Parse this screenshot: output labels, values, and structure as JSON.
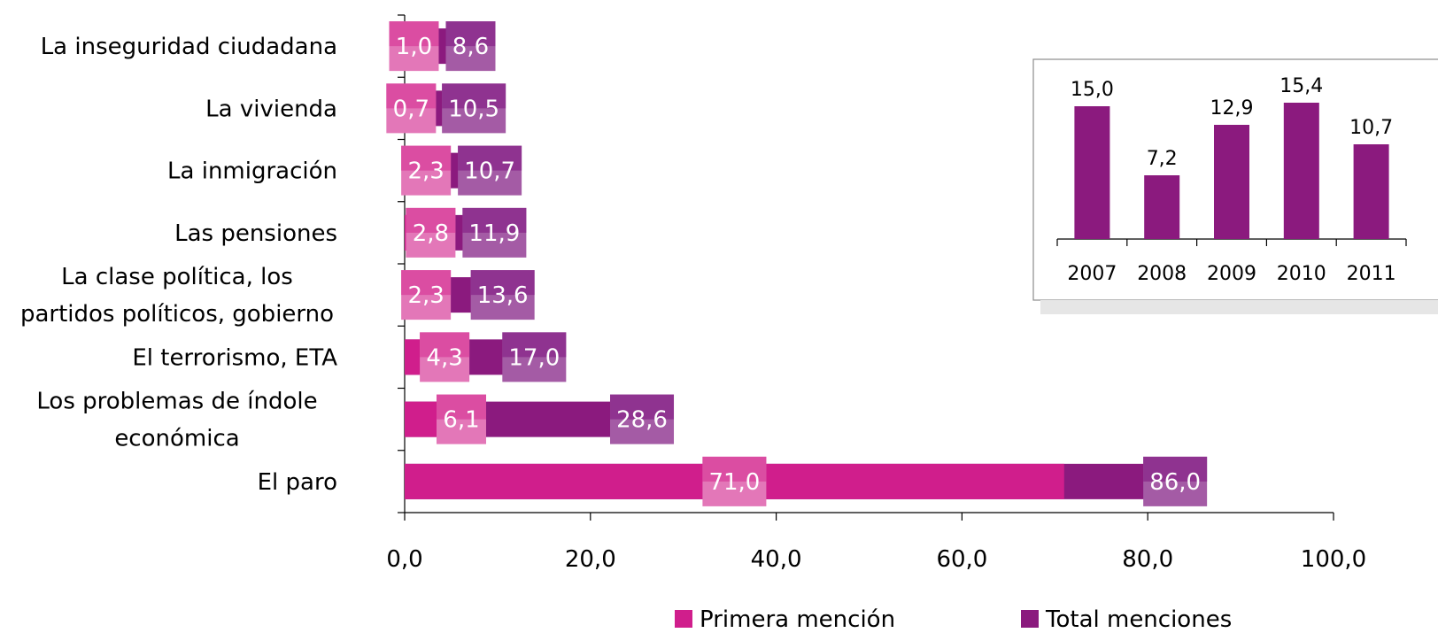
{
  "chart_data": [
    {
      "type": "bar",
      "orientation": "horizontal",
      "categories": [
        "El paro",
        "Los problemas de índole económica",
        "El terrorismo, ETA",
        "La clase política, los partidos políticos, gobierno",
        "Las pensiones",
        "La inmigración",
        "La vivienda",
        "La inseguridad ciudadana"
      ],
      "category_lines": [
        [
          "El paro"
        ],
        [
          "Los problemas de índole",
          "económica"
        ],
        [
          "El terrorismo, ETA"
        ],
        [
          "La clase política, los",
          "partidos políticos, gobierno"
        ],
        [
          "Las pensiones"
        ],
        [
          "La inmigración"
        ],
        [
          "La vivienda"
        ],
        [
          "La inseguridad ciudadana"
        ]
      ],
      "series": [
        {
          "name": "Primera mención",
          "color": "#d01e8c",
          "values": [
            71.0,
            6.1,
            4.3,
            2.3,
            2.8,
            2.3,
            0.7,
            1.0
          ],
          "labels": [
            "71,0",
            "6,1",
            "4,3",
            "2,3",
            "2,8",
            "2,3",
            "0,7",
            "1,0"
          ]
        },
        {
          "name": "Total menciones",
          "color": "#8b1a7e",
          "values": [
            86.0,
            28.6,
            17.0,
            13.6,
            11.9,
            10.7,
            10.5,
            8.6
          ],
          "labels": [
            "86,0",
            "28,6",
            "17,0",
            "13,6",
            "11,9",
            "10,7",
            "10,5",
            "8,6"
          ]
        }
      ],
      "x_ticks": [
        "0,0",
        "20,0",
        "40,0",
        "60,0",
        "80,0",
        "100,0"
      ],
      "xlim": [
        0,
        100
      ],
      "legend_position": "bottom",
      "grid": false
    },
    {
      "type": "bar",
      "inset": true,
      "categories": [
        "2007",
        "2008",
        "2009",
        "2010",
        "2011"
      ],
      "values": [
        15.0,
        7.2,
        12.9,
        15.4,
        10.7
      ],
      "labels": [
        "15,0",
        "7,2",
        "12,9",
        "15,4",
        "10,7"
      ],
      "color": "#8b1a7e",
      "ylim": [
        0,
        16
      ]
    }
  ]
}
